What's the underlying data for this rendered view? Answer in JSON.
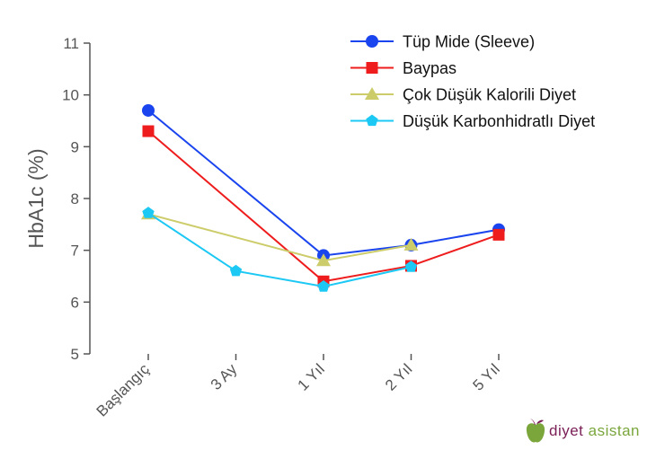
{
  "chart_data": {
    "type": "line",
    "categories": [
      "Başlangıç",
      "3 Ay",
      "1 Yıl",
      "2 Yıl",
      "5 Yıl"
    ],
    "ylabel": "HbA1c (%)",
    "ylim": [
      5,
      11
    ],
    "yticks": [
      "5",
      "6",
      "7",
      "8",
      "9",
      "10",
      "11"
    ],
    "grid": false,
    "legend_position": "top-right",
    "series": [
      {
        "name": "Tüp Mide (Sleeve)",
        "color": "#1a44ee",
        "marker": "circle",
        "values": [
          9.7,
          null,
          6.9,
          7.1,
          7.4
        ]
      },
      {
        "name": "Baypas",
        "color": "#ee1c1c",
        "marker": "square",
        "values": [
          9.3,
          null,
          6.4,
          6.7,
          7.3
        ]
      },
      {
        "name": "Çok Düşük Kalorili Diyet",
        "color": "#cccc6a",
        "marker": "triangle",
        "values": [
          7.7,
          null,
          6.8,
          7.1,
          null
        ]
      },
      {
        "name": "Düşük Karbonhidratlı Diyet",
        "color": "#1cc8f4",
        "marker": "pentagon",
        "values": [
          7.72,
          6.6,
          6.3,
          6.68,
          null
        ]
      }
    ]
  },
  "brand": {
    "part1": "diyet",
    "part2": " asistan"
  }
}
